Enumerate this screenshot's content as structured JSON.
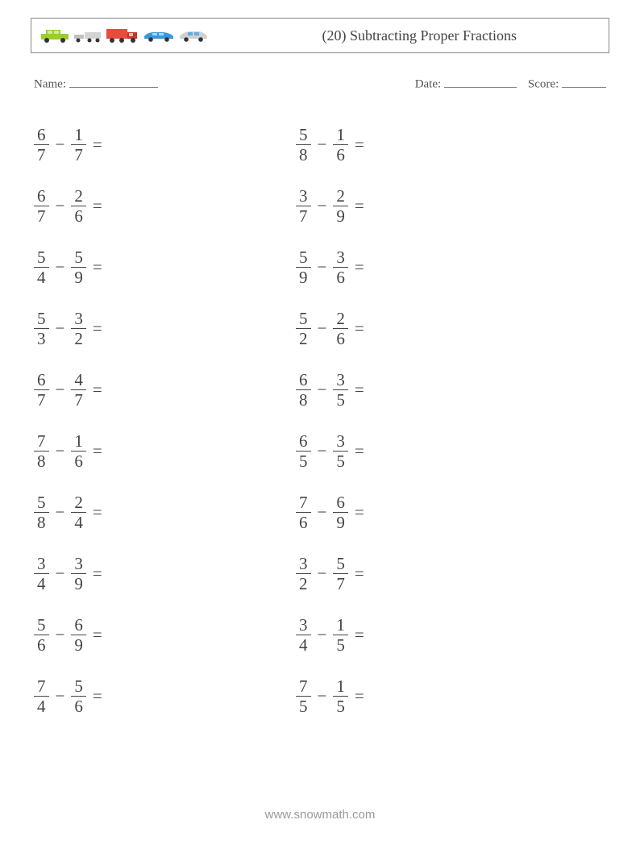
{
  "header": {
    "title": "(20) Subtracting Proper Fractions",
    "vehicle_colors": {
      "car1_body": "#9acd32",
      "car1_roof": "#6b8e23",
      "trailer_body": "#d3d3d3",
      "truck_body": "#e74c3c",
      "truck_cab": "#c0392b",
      "sedan_body": "#3498db",
      "hatch_body": "#d0d0d0",
      "hatch_window": "#5dade2",
      "wheel": "#333333"
    }
  },
  "info": {
    "name_label": "Name:",
    "date_label": "Date:",
    "score_label": "Score:",
    "name_blank_width": 110,
    "date_blank_width": 90,
    "score_blank_width": 55
  },
  "problems": {
    "column1": [
      {
        "n1": "6",
        "d1": "7",
        "n2": "1",
        "d2": "7"
      },
      {
        "n1": "6",
        "d1": "7",
        "n2": "2",
        "d2": "6"
      },
      {
        "n1": "5",
        "d1": "4",
        "n2": "5",
        "d2": "9"
      },
      {
        "n1": "5",
        "d1": "3",
        "n2": "3",
        "d2": "2"
      },
      {
        "n1": "6",
        "d1": "7",
        "n2": "4",
        "d2": "7"
      },
      {
        "n1": "7",
        "d1": "8",
        "n2": "1",
        "d2": "6"
      },
      {
        "n1": "5",
        "d1": "8",
        "n2": "2",
        "d2": "4"
      },
      {
        "n1": "3",
        "d1": "4",
        "n2": "3",
        "d2": "9"
      },
      {
        "n1": "5",
        "d1": "6",
        "n2": "6",
        "d2": "9"
      },
      {
        "n1": "7",
        "d1": "4",
        "n2": "5",
        "d2": "6"
      }
    ],
    "column2": [
      {
        "n1": "5",
        "d1": "8",
        "n2": "1",
        "d2": "6"
      },
      {
        "n1": "3",
        "d1": "7",
        "n2": "2",
        "d2": "9"
      },
      {
        "n1": "5",
        "d1": "9",
        "n2": "3",
        "d2": "6"
      },
      {
        "n1": "5",
        "d1": "2",
        "n2": "2",
        "d2": "6"
      },
      {
        "n1": "6",
        "d1": "8",
        "n2": "3",
        "d2": "5"
      },
      {
        "n1": "6",
        "d1": "5",
        "n2": "3",
        "d2": "5"
      },
      {
        "n1": "7",
        "d1": "6",
        "n2": "6",
        "d2": "9"
      },
      {
        "n1": "3",
        "d1": "2",
        "n2": "5",
        "d2": "7"
      },
      {
        "n1": "3",
        "d1": "4",
        "n2": "1",
        "d2": "5"
      },
      {
        "n1": "7",
        "d1": "5",
        "n2": "1",
        "d2": "5"
      }
    ]
  },
  "symbols": {
    "minus": "−",
    "equals": "="
  },
  "footer": {
    "text": "www.snowmath.com"
  },
  "style": {
    "page_bg": "#ffffff",
    "text_color": "#444444",
    "border_color": "#888888",
    "footer_color": "#9a9a9a",
    "problem_fontsize": 21,
    "title_fontsize": 18,
    "info_fontsize": 15
  }
}
